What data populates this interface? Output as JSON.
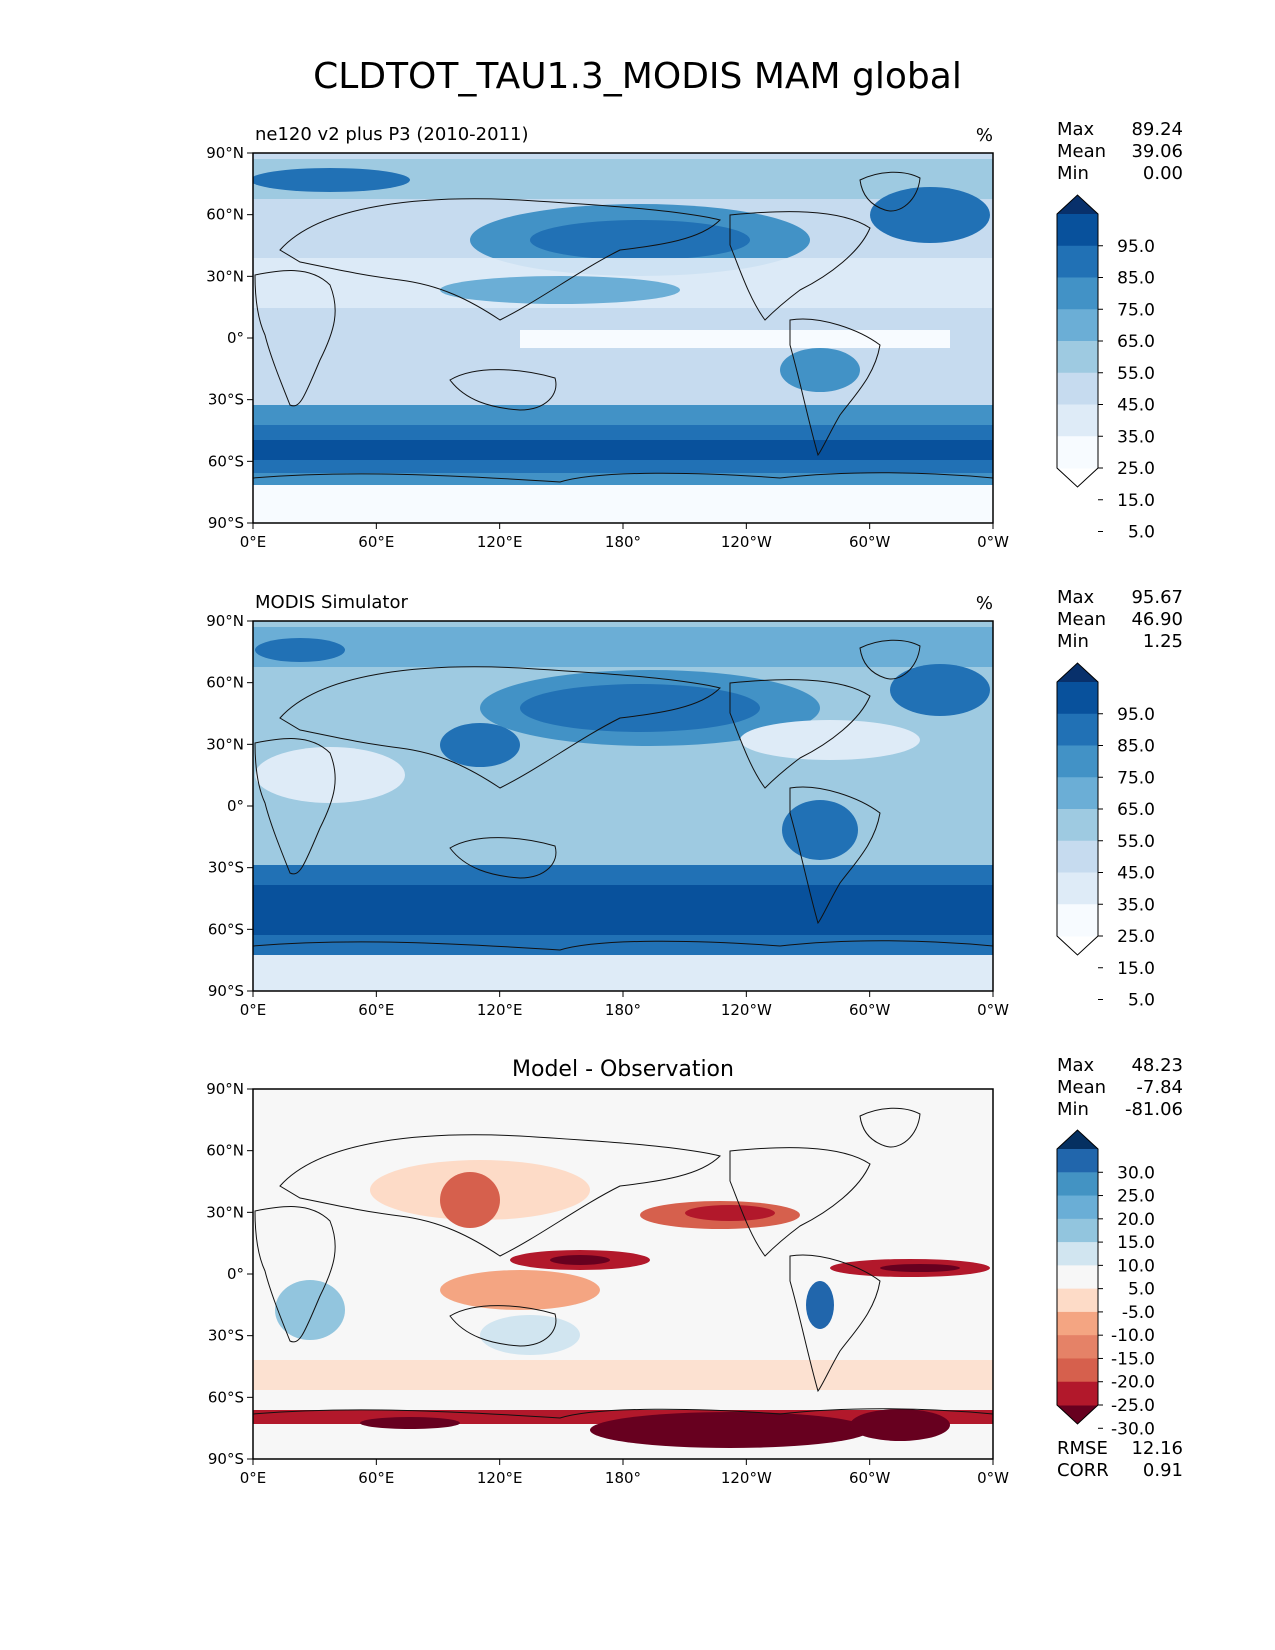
{
  "figure_title": "CLDTOT_TAU1.3_MODIS MAM global",
  "palettes": {
    "blues": [
      "#f7fbff",
      "#deebf7",
      "#c6dbef",
      "#9ecae1",
      "#6baed6",
      "#4292c6",
      "#2171b5",
      "#08519c",
      "#08306b"
    ],
    "blues10": [
      "#ffffff",
      "#f7fbff",
      "#deebf7",
      "#c6dbef",
      "#9ecae1",
      "#6baed6",
      "#4292c6",
      "#2171b5",
      "#08519c",
      "#08306b"
    ],
    "rdbu": [
      "#67001f",
      "#b2182b",
      "#d6604d",
      "#e58267",
      "#f4a582",
      "#fddbc7",
      "#f7f7f7",
      "#d1e5f0",
      "#92c5de",
      "#6aaed6",
      "#4393c3",
      "#2166ac",
      "#053061"
    ]
  },
  "chart_data": [
    {
      "type": "heatmap",
      "panel": "test",
      "title_left": "ne120 v2 plus P3 (2010-2011)",
      "title_right": "%",
      "lat_ticks": [
        "90°N",
        "60°N",
        "30°N",
        "0°",
        "30°S",
        "60°S",
        "90°S"
      ],
      "lon_ticks": [
        "0°E",
        "60°E",
        "120°E",
        "180°",
        "120°W",
        "60°W",
        "0°W"
      ],
      "stats": {
        "labels": [
          "Max",
          "Mean",
          "Min"
        ],
        "values": [
          "89.24",
          "39.06",
          "0.00"
        ]
      },
      "colorbar_ticks": [
        "95.0",
        "85.0",
        "75.0",
        "65.0",
        "55.0",
        "45.0",
        "35.0",
        "25.0",
        "15.0",
        "5.0"
      ],
      "colorbar_extend": "both",
      "value_range": [
        0,
        100
      ],
      "units": "%"
    },
    {
      "type": "heatmap",
      "panel": "reference",
      "title_left": "MODIS Simulator",
      "title_right": "%",
      "lat_ticks": [
        "90°N",
        "60°N",
        "30°N",
        "0°",
        "30°S",
        "60°S",
        "90°S"
      ],
      "lon_ticks": [
        "0°E",
        "60°E",
        "120°E",
        "180°",
        "120°W",
        "60°W",
        "0°W"
      ],
      "stats": {
        "labels": [
          "Max",
          "Mean",
          "Min"
        ],
        "values": [
          "95.67",
          "46.90",
          "1.25"
        ]
      },
      "colorbar_ticks": [
        "95.0",
        "85.0",
        "75.0",
        "65.0",
        "55.0",
        "45.0",
        "35.0",
        "25.0",
        "15.0",
        "5.0"
      ],
      "colorbar_extend": "both",
      "value_range": [
        0,
        100
      ],
      "units": "%"
    },
    {
      "type": "heatmap",
      "panel": "difference",
      "title_center": "Model - Observation",
      "lat_ticks": [
        "90°N",
        "60°N",
        "30°N",
        "0°",
        "30°S",
        "60°S",
        "90°S"
      ],
      "lon_ticks": [
        "0°E",
        "60°E",
        "120°E",
        "180°",
        "120°W",
        "60°W",
        "0°W"
      ],
      "stats": {
        "labels": [
          "Max",
          "Mean",
          "Min"
        ],
        "values": [
          "48.23",
          "-7.84",
          "-81.06"
        ]
      },
      "colorbar_ticks": [
        "30.0",
        "25.0",
        "20.0",
        "15.0",
        "10.0",
        "5.0",
        "-5.0",
        "-10.0",
        "-15.0",
        "-20.0",
        "-25.0",
        "-30.0"
      ],
      "colorbar_extend": "both",
      "value_range": [
        -35,
        35
      ],
      "extra_stats": {
        "labels": [
          "RMSE",
          "CORR"
        ],
        "values": [
          "12.16",
          "0.91"
        ]
      }
    }
  ]
}
